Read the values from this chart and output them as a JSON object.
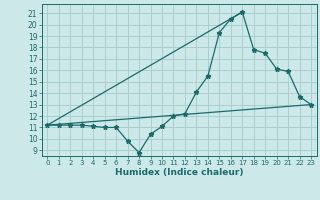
{
  "title": "",
  "xlabel": "Humidex (Indice chaleur)",
  "background_color": "#cce8e8",
  "grid_color": "#aacfcf",
  "line_color": "#1a6b6b",
  "xlim": [
    -0.5,
    23.5
  ],
  "ylim": [
    8.5,
    21.8
  ],
  "xticks": [
    0,
    1,
    2,
    3,
    4,
    5,
    6,
    7,
    8,
    9,
    10,
    11,
    12,
    13,
    14,
    15,
    16,
    17,
    18,
    19,
    20,
    21,
    22,
    23
  ],
  "yticks": [
    9,
    10,
    11,
    12,
    13,
    14,
    15,
    16,
    17,
    18,
    19,
    20,
    21
  ],
  "line1_x": [
    0,
    1,
    2,
    3,
    4,
    5,
    6,
    7,
    8,
    9,
    10,
    11,
    12,
    13,
    14,
    15,
    16,
    17,
    18,
    19,
    20,
    21,
    22,
    23
  ],
  "line1_y": [
    11.2,
    11.2,
    11.2,
    11.2,
    11.1,
    11.0,
    11.0,
    9.8,
    8.8,
    10.4,
    11.1,
    12.0,
    12.2,
    14.1,
    15.5,
    19.3,
    20.5,
    21.1,
    17.8,
    17.5,
    16.1,
    15.9,
    13.7,
    13.0
  ],
  "line2_x": [
    0,
    23
  ],
  "line2_y": [
    11.2,
    13.0
  ],
  "line3_x": [
    0,
    17
  ],
  "line3_y": [
    11.2,
    21.1
  ]
}
